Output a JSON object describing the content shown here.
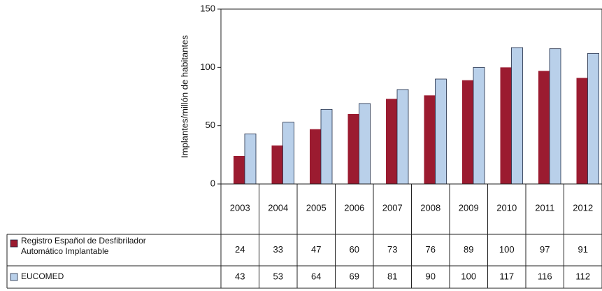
{
  "chart_data": {
    "type": "bar",
    "y_label": "Implantes/millón de habitantes",
    "categories": [
      "2003",
      "2004",
      "2005",
      "2006",
      "2007",
      "2008",
      "2009",
      "2010",
      "2011",
      "2012"
    ],
    "series": [
      {
        "name": "Registro Español de Desfibrilador Automático Implantable",
        "color": "#9b1b30",
        "values": [
          24,
          33,
          47,
          60,
          73,
          76,
          89,
          100,
          97,
          91
        ]
      },
      {
        "name": "EUCOMED",
        "color": "#b9d0ea",
        "values": [
          43,
          53,
          64,
          69,
          81,
          90,
          100,
          117,
          116,
          112
        ]
      }
    ],
    "ylim": [
      0,
      150
    ],
    "yticks": [
      0,
      50,
      100,
      150
    ]
  }
}
